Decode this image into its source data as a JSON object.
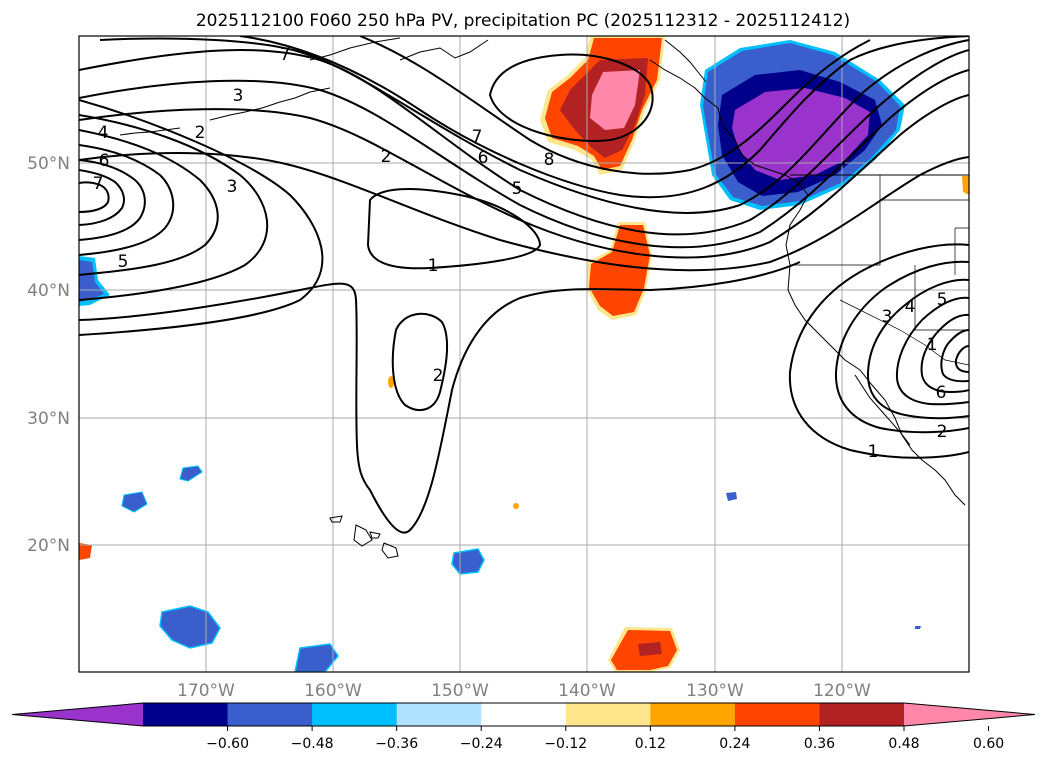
{
  "title": "2025112100 F060 250 hPa PV, precipitation PC (2025112312 - 2025112412)",
  "lat_labels": [
    "50°N",
    "40°N",
    "30°N",
    "20°N"
  ],
  "lon_labels": [
    "170°W",
    "160°W",
    "150°W",
    "140°W",
    "130°W",
    "120°W"
  ],
  "colorbar": {
    "ticks": [
      "−0.60",
      "−0.48",
      "−0.36",
      "−0.24",
      "−0.12",
      "0.12",
      "0.24",
      "0.36",
      "0.48",
      "0.60"
    ],
    "colors": [
      "#9933cc",
      "#00008b",
      "#3a5fcd",
      "#00bfff",
      "#b0e2ff",
      "#ffffff",
      "#ffe68c",
      "#ffa500",
      "#ff4500",
      "#b22222",
      "#ff88aa"
    ]
  },
  "contour_labels": [
    "7",
    "3",
    "4",
    "2",
    "6",
    "7",
    "3",
    "2",
    "5",
    "1",
    "7",
    "6",
    "8",
    "5",
    "2",
    "3",
    "4",
    "5",
    "1",
    "6",
    "2",
    "1"
  ]
}
